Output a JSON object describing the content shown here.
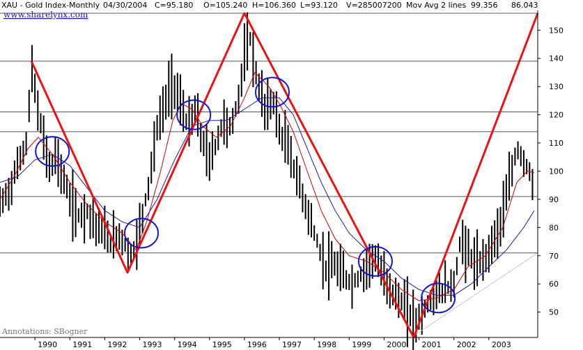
{
  "header": {
    "symbol": "XAU - Gold Index-Monthly",
    "date": "04/30/2004",
    "close": "C=95.180",
    "open": "O=105.240",
    "high": "H=106.360",
    "low": "L=93.120",
    "volume": "V=285007200",
    "ma_label": "Mov Avg 2 lines",
    "ma1_value": "99.356",
    "ma2_value": "86.043",
    "ma1_color": "#d40000",
    "ma2_color": "#1a1aa8"
  },
  "site_link": "www.sharelynx.com",
  "annotation": "Annotations: SBogner",
  "chart_data": {
    "type": "line",
    "title": "XAU - Gold Index-Monthly",
    "x_ticks": [
      "1990",
      "1991",
      "1992",
      "1993",
      "1994",
      "1995",
      "1996",
      "1997",
      "1998",
      "1999",
      "2000",
      "2001",
      "2002",
      "2003"
    ],
    "x_range": [
      1989.0,
      2004.4
    ],
    "y_ticks": [
      50,
      60,
      70,
      80,
      90,
      100,
      110,
      120,
      130,
      140,
      150
    ],
    "y_range": [
      41,
      157
    ],
    "horizontal_lines": [
      156,
      139,
      121,
      114,
      91,
      71
    ],
    "price": [
      [
        1989.0,
        88
      ],
      [
        1989.3,
        94
      ],
      [
        1989.5,
        102
      ],
      [
        1989.75,
        110
      ],
      [
        1989.92,
        136
      ],
      [
        1990.1,
        120
      ],
      [
        1990.3,
        108
      ],
      [
        1990.45,
        100
      ],
      [
        1990.6,
        106
      ],
      [
        1990.8,
        98
      ],
      [
        1991.0,
        90
      ],
      [
        1991.2,
        84
      ],
      [
        1991.5,
        86
      ],
      [
        1991.8,
        80
      ],
      [
        1992.0,
        78
      ],
      [
        1992.2,
        74
      ],
      [
        1992.4,
        78
      ],
      [
        1992.65,
        72
      ],
      [
        1992.8,
        70
      ],
      [
        1993.0,
        80
      ],
      [
        1993.25,
        95
      ],
      [
        1993.5,
        115
      ],
      [
        1993.75,
        125
      ],
      [
        1993.95,
        132
      ],
      [
        1994.15,
        125
      ],
      [
        1994.4,
        115
      ],
      [
        1994.6,
        122
      ],
      [
        1994.8,
        110
      ],
      [
        1995.0,
        104
      ],
      [
        1995.2,
        110
      ],
      [
        1995.4,
        118
      ],
      [
        1995.6,
        115
      ],
      [
        1995.8,
        124
      ],
      [
        1996.0,
        140
      ],
      [
        1996.15,
        148
      ],
      [
        1996.4,
        130
      ],
      [
        1996.6,
        122
      ],
      [
        1996.85,
        125
      ],
      [
        1997.0,
        114
      ],
      [
        1997.2,
        110
      ],
      [
        1997.5,
        98
      ],
      [
        1997.8,
        86
      ],
      [
        1998.0,
        78
      ],
      [
        1998.3,
        66
      ],
      [
        1998.6,
        66
      ],
      [
        1998.9,
        62
      ],
      [
        1999.1,
        60
      ],
      [
        1999.4,
        64
      ],
      [
        1999.7,
        70
      ],
      [
        2000.0,
        62
      ],
      [
        2000.3,
        56
      ],
      [
        2000.6,
        52
      ],
      [
        2000.9,
        46
      ],
      [
        2001.1,
        50
      ],
      [
        2001.4,
        55
      ],
      [
        2001.7,
        58
      ],
      [
        2002.0,
        60
      ],
      [
        2002.2,
        76
      ],
      [
        2002.45,
        70
      ],
      [
        2002.7,
        66
      ],
      [
        2003.0,
        72
      ],
      [
        2003.3,
        80
      ],
      [
        2003.6,
        96
      ],
      [
        2003.8,
        108
      ],
      [
        2004.0,
        104
      ],
      [
        2004.15,
        100
      ],
      [
        2004.3,
        95
      ]
    ],
    "ma_short": [
      [
        1989.0,
        90
      ],
      [
        1989.4,
        98
      ],
      [
        1989.8,
        108
      ],
      [
        1990.1,
        112
      ],
      [
        1990.5,
        106
      ],
      [
        1991.0,
        96
      ],
      [
        1991.5,
        88
      ],
      [
        1992.0,
        82
      ],
      [
        1992.5,
        78
      ],
      [
        1992.9,
        72
      ],
      [
        1993.2,
        82
      ],
      [
        1993.6,
        100
      ],
      [
        1993.95,
        118
      ],
      [
        1994.2,
        124
      ],
      [
        1994.5,
        122
      ],
      [
        1994.8,
        116
      ],
      [
        1995.2,
        112
      ],
      [
        1995.6,
        116
      ],
      [
        1996.0,
        126
      ],
      [
        1996.3,
        135
      ],
      [
        1996.7,
        130
      ],
      [
        1997.0,
        124
      ],
      [
        1997.4,
        114
      ],
      [
        1997.8,
        100
      ],
      [
        1998.2,
        86
      ],
      [
        1998.6,
        76
      ],
      [
        1999.0,
        70
      ],
      [
        1999.5,
        68
      ],
      [
        2000.0,
        64
      ],
      [
        2000.5,
        58
      ],
      [
        2001.0,
        54
      ],
      [
        2001.5,
        55
      ],
      [
        2002.0,
        58
      ],
      [
        2002.4,
        66
      ],
      [
        2002.9,
        70
      ],
      [
        2003.4,
        80
      ],
      [
        2003.8,
        96
      ],
      [
        2004.1,
        100
      ],
      [
        2004.3,
        99.4
      ]
    ],
    "ma_long": [
      [
        1989.0,
        96
      ],
      [
        1989.5,
        98
      ],
      [
        1990.0,
        104
      ],
      [
        1990.5,
        106
      ],
      [
        1991.0,
        102
      ],
      [
        1991.5,
        94
      ],
      [
        1992.0,
        86
      ],
      [
        1992.5,
        82
      ],
      [
        1993.0,
        80
      ],
      [
        1993.5,
        90
      ],
      [
        1994.0,
        104
      ],
      [
        1994.5,
        116
      ],
      [
        1995.0,
        118
      ],
      [
        1995.5,
        118
      ],
      [
        1996.0,
        122
      ],
      [
        1996.5,
        126
      ],
      [
        1997.0,
        126
      ],
      [
        1997.4,
        120
      ],
      [
        1997.8,
        108
      ],
      [
        1998.2,
        96
      ],
      [
        1998.6,
        86
      ],
      [
        1999.0,
        78
      ],
      [
        1999.5,
        72
      ],
      [
        2000.0,
        68
      ],
      [
        2000.5,
        62
      ],
      [
        2001.0,
        58
      ],
      [
        2001.5,
        56
      ],
      [
        2002.0,
        56
      ],
      [
        2002.5,
        60
      ],
      [
        2003.0,
        66
      ],
      [
        2003.5,
        72
      ],
      [
        2004.0,
        80
      ],
      [
        2004.3,
        86.0
      ]
    ],
    "trend_lines": [
      {
        "color": "#ee1111",
        "points": [
          [
            1989.9,
            139
          ],
          [
            1992.65,
            64
          ],
          [
            1996.0,
            156
          ],
          [
            2000.85,
            41
          ],
          [
            2004.4,
            156
          ]
        ]
      }
    ],
    "support_line": {
      "color": "#c8c8c8",
      "points": [
        [
          2000.9,
          42
        ],
        [
          2004.4,
          71
        ]
      ]
    },
    "circles": [
      {
        "x": 1990.5,
        "y": 107
      },
      {
        "x": 1993.05,
        "y": 78
      },
      {
        "x": 1994.55,
        "y": 120
      },
      {
        "x": 1996.8,
        "y": 128
      },
      {
        "x": 1999.75,
        "y": 68
      },
      {
        "x": 2001.55,
        "y": 55
      }
    ],
    "circle_color": "#1515cc"
  }
}
